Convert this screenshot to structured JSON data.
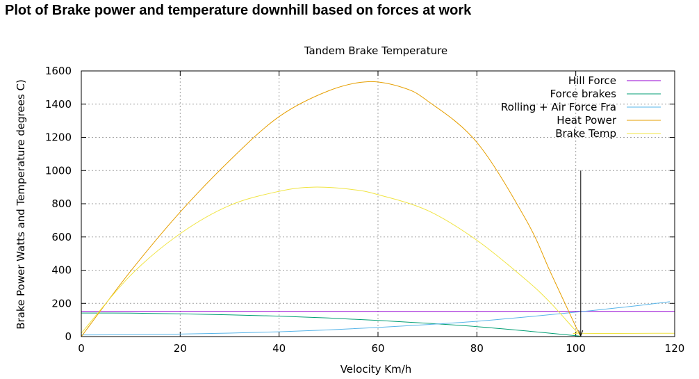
{
  "page": {
    "title": "Plot of Brake power and temperature downhill based on forces at work"
  },
  "chart_data": {
    "type": "line",
    "title": "Tandem Brake Temperature",
    "xlabel": "Velocity Km/h",
    "ylabel": "Brake Power Watts and Temperature degrees C)",
    "xlim": [
      0,
      120
    ],
    "ylim": [
      0,
      1600
    ],
    "xticks": [
      0,
      20,
      40,
      60,
      80,
      100,
      120
    ],
    "yticks": [
      0,
      200,
      400,
      600,
      800,
      1000,
      1200,
      1400,
      1600
    ],
    "grid": true,
    "legend": "top-right",
    "series": [
      {
        "name": "Hill Force",
        "color": "#9400d3",
        "points": [
          [
            0,
            152
          ],
          [
            120,
            152
          ]
        ]
      },
      {
        "name": "Force brakes",
        "color": "#009e73",
        "points": [
          [
            0,
            142
          ],
          [
            10,
            141
          ],
          [
            20,
            137
          ],
          [
            30,
            131
          ],
          [
            40,
            123
          ],
          [
            50,
            112
          ],
          [
            60,
            97
          ],
          [
            70,
            80
          ],
          [
            80,
            60
          ],
          [
            90,
            34
          ],
          [
            100,
            5
          ],
          [
            101,
            1
          ]
        ]
      },
      {
        "name": "Rolling + Air Force Fra",
        "color": "#56b4e9",
        "points": [
          [
            0,
            10
          ],
          [
            10,
            11
          ],
          [
            20,
            15
          ],
          [
            30,
            21
          ],
          [
            40,
            29
          ],
          [
            50,
            40
          ],
          [
            60,
            55
          ],
          [
            70,
            72
          ],
          [
            80,
            92
          ],
          [
            90,
            118
          ],
          [
            100,
            147
          ],
          [
            110,
            178
          ],
          [
            119,
            210
          ]
        ]
      },
      {
        "name": "Heat Power",
        "color": "#e69f00",
        "points": [
          [
            0,
            0
          ],
          [
            10,
            395
          ],
          [
            20,
            750
          ],
          [
            30,
            1060
          ],
          [
            40,
            1325
          ],
          [
            50,
            1480
          ],
          [
            58,
            1535
          ],
          [
            65,
            1500
          ],
          [
            70,
            1420
          ],
          [
            80,
            1170
          ],
          [
            90,
            700
          ],
          [
            95,
            380
          ],
          [
            100,
            60
          ],
          [
            101,
            0
          ]
        ]
      },
      {
        "name": "Brake Temp",
        "color": "#f0e442",
        "points": [
          [
            0,
            20
          ],
          [
            10,
            370
          ],
          [
            20,
            620
          ],
          [
            30,
            790
          ],
          [
            40,
            875
          ],
          [
            47,
            900
          ],
          [
            55,
            885
          ],
          [
            60,
            855
          ],
          [
            70,
            760
          ],
          [
            80,
            580
          ],
          [
            90,
            340
          ],
          [
            95,
            200
          ],
          [
            100,
            35
          ],
          [
            101,
            20
          ],
          [
            120,
            20
          ]
        ]
      }
    ],
    "annotations": [
      {
        "type": "arrow",
        "x": 101,
        "y_from": 1000,
        "y_to": 0,
        "color": "#000000"
      }
    ]
  }
}
